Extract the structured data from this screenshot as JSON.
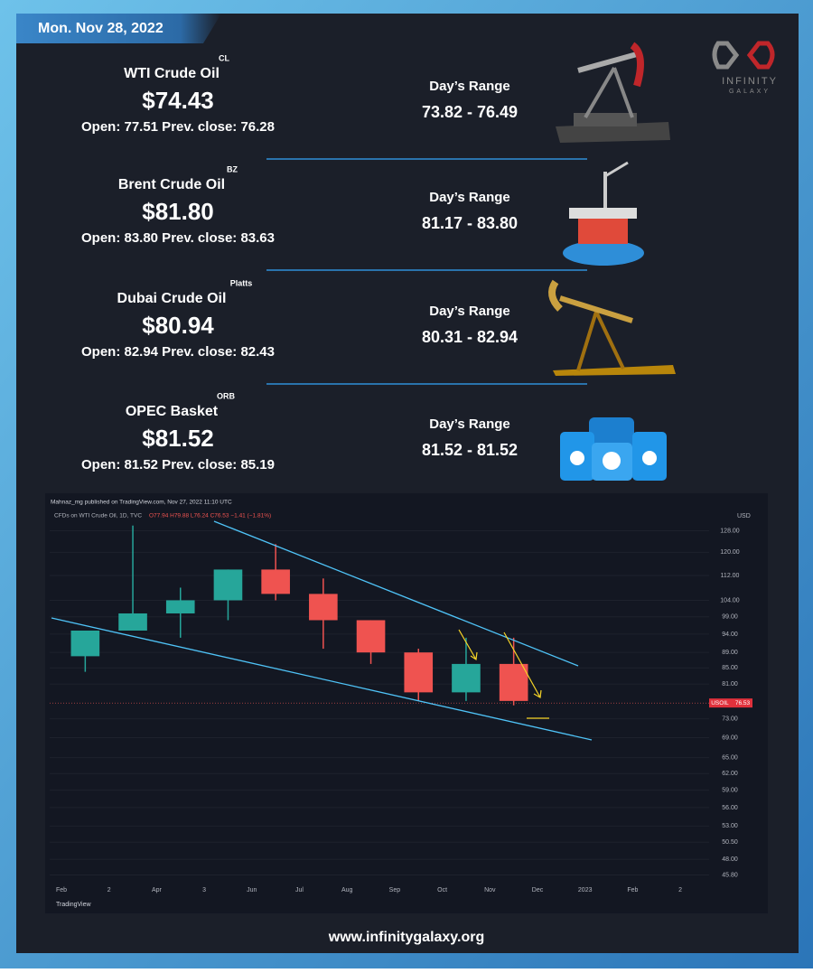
{
  "header": {
    "date": "Mon. Nov 28, 2022"
  },
  "logo": {
    "line1": "INFINITY",
    "line2": "GALAXY"
  },
  "cards": [
    {
      "name": "WTI Crude Oil",
      "tag": "CL",
      "price": "$74.43",
      "open_prev": "Open: 77.51 Prev. close: 76.28",
      "range_label": "Day’s Range",
      "range": "73.82 - 76.49"
    },
    {
      "name": "Brent Crude Oil",
      "tag": "BZ",
      "price": "$81.80",
      "open_prev": "Open: 83.80 Prev. close: 83.63",
      "range_label": "Day’s Range",
      "range": "81.17 - 83.80"
    },
    {
      "name": "Dubai Crude Oil",
      "tag": "Platts",
      "price": "$80.94",
      "open_prev": "Open: 82.94 Prev. close: 82.43",
      "range_label": "Day’s Range",
      "range": "80.31 - 82.94"
    },
    {
      "name": "OPEC Basket",
      "tag": "ORB",
      "price": "$81.52",
      "open_prev": "Open: 81.52 Prev. close: 85.19",
      "range_label": "Day’s Range",
      "range": "81.52 - 81.52"
    }
  ],
  "chart_data": {
    "type": "candlestick",
    "published": "Mahnaz_mg published on TradingView.com, Nov 27, 2022 11:10 UTC",
    "symbol_line": "CFDs on WTI Crude Oil, 1D, TVC",
    "ohlc_line": "O77.94 H79.88 L76.24 C76.53 −1.41 (−1.81%)",
    "axis_unit": "USD",
    "categories": [
      "Feb",
      "2",
      "Apr",
      "3",
      "Jun",
      "Jul",
      "Aug",
      "Sep",
      "Oct",
      "Nov",
      "Dec",
      "2023",
      "Feb",
      "2"
    ],
    "open": [
      88,
      95,
      100,
      104,
      114,
      106,
      98,
      89,
      79,
      86,
      null,
      null,
      null,
      null
    ],
    "high": [
      95,
      130,
      108,
      114,
      123,
      111,
      98,
      90,
      93,
      93,
      null,
      null,
      null,
      null
    ],
    "low": [
      84,
      95,
      93,
      98,
      104,
      90,
      86,
      77,
      77,
      76,
      null,
      null,
      null,
      null
    ],
    "close": [
      95,
      100,
      104,
      114,
      106,
      98,
      89,
      79,
      86,
      77,
      null,
      null,
      null,
      null
    ],
    "up_color": "#26a69a",
    "down_color": "#ef5350",
    "log_scale": true,
    "ylim": [
      45,
      136
    ],
    "yticks": [
      {
        "value": 128,
        "label": "128.00"
      },
      {
        "value": 120,
        "label": "120.00"
      },
      {
        "value": 112,
        "label": "112.00"
      },
      {
        "value": 104,
        "label": "104.00"
      },
      {
        "value": 99,
        "label": "99.00"
      },
      {
        "value": 94,
        "label": "94.00"
      },
      {
        "value": 89,
        "label": "89.00"
      },
      {
        "value": 85,
        "label": "85.00"
      },
      {
        "value": 81,
        "label": "81.00"
      },
      {
        "value": 73,
        "label": "73.00"
      },
      {
        "value": 69,
        "label": "69.00"
      },
      {
        "value": 65,
        "label": "65.00"
      },
      {
        "value": 62,
        "label": "62.00"
      },
      {
        "value": 59,
        "label": "59.00"
      },
      {
        "value": 56,
        "label": "56.00"
      },
      {
        "value": 53,
        "label": "53.00"
      },
      {
        "value": 50.5,
        "label": "50.50"
      },
      {
        "value": 48,
        "label": "48.00"
      },
      {
        "value": 45.8,
        "label": "45.80"
      }
    ],
    "last_symbol": "USOIL",
    "last_price": 76.53,
    "brand": "TradingView"
  },
  "footer": {
    "url": "www.infinitygalaxy.org"
  }
}
